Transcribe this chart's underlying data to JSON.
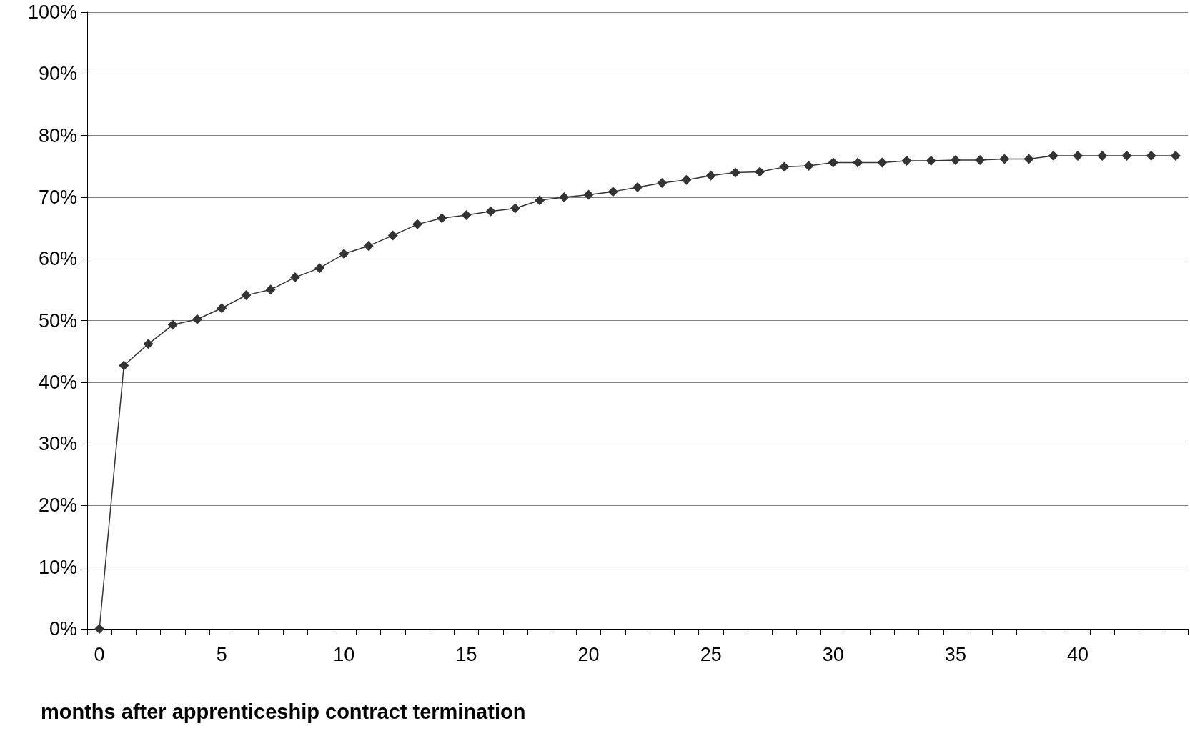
{
  "chart_data": {
    "type": "line",
    "xlabel": "months after apprenticeship contract termination",
    "categories": [
      "0",
      null,
      null,
      null,
      null,
      "5",
      null,
      null,
      null,
      null,
      "10",
      null,
      null,
      null,
      null,
      "15",
      null,
      null,
      null,
      null,
      "20",
      null,
      null,
      null,
      null,
      "25",
      null,
      null,
      null,
      null,
      "30",
      null,
      null,
      null,
      null,
      "35",
      null,
      null,
      null,
      null,
      "40",
      null,
      null,
      null,
      null
    ],
    "series": [
      {
        "color": "#333333",
        "values": [
          0,
          42.7,
          46.2,
          49.3,
          50.2,
          52.0,
          54.1,
          55.0,
          57.0,
          58.5,
          60.8,
          62.1,
          63.8,
          65.6,
          66.6,
          67.1,
          67.7,
          68.2,
          69.5,
          70.0,
          70.4,
          70.9,
          71.6,
          72.3,
          72.8,
          73.5,
          74.0,
          74.1,
          74.9,
          75.1,
          75.6,
          75.6,
          75.6,
          75.9,
          75.9,
          76.0,
          76.0,
          76.2,
          76.2,
          76.7,
          76.7,
          76.7,
          76.7,
          76.7,
          76.7
        ]
      }
    ],
    "ylim": [
      0,
      100
    ],
    "yticks": [
      {
        "value": 0,
        "label": "0%"
      },
      {
        "value": 10,
        "label": "10%"
      },
      {
        "value": 20,
        "label": "20%"
      },
      {
        "value": 30,
        "label": "30%"
      },
      {
        "value": 40,
        "label": "40%"
      },
      {
        "value": 50,
        "label": "50%"
      },
      {
        "value": 60,
        "label": "60%"
      },
      {
        "value": 70,
        "label": "70%"
      },
      {
        "value": 80,
        "label": "80%"
      },
      {
        "value": 90,
        "label": "90%"
      },
      {
        "value": 100,
        "label": "100%"
      }
    ],
    "grid": "y",
    "marker": "diamond",
    "line_style": "solid"
  }
}
